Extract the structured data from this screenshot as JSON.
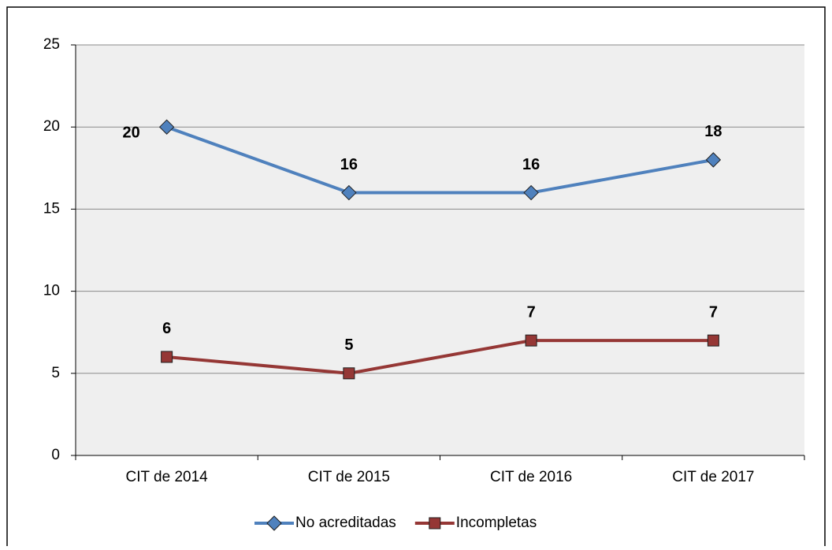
{
  "chart_data": {
    "type": "line",
    "categories": [
      "CIT de 2014",
      "CIT de 2015",
      "CIT de 2016",
      "CIT de 2017"
    ],
    "series": [
      {
        "name": "No acreditadas",
        "color": "#4f81bd",
        "marker": "diamond",
        "values": [
          20,
          16,
          16,
          18
        ]
      },
      {
        "name": "Incompletas",
        "color": "#953735",
        "marker": "square",
        "values": [
          6,
          5,
          7,
          7
        ]
      }
    ],
    "ylim": [
      0,
      25
    ],
    "yticks": [
      0,
      5,
      10,
      15,
      20,
      25
    ],
    "grid": true,
    "legend": "bottom"
  }
}
